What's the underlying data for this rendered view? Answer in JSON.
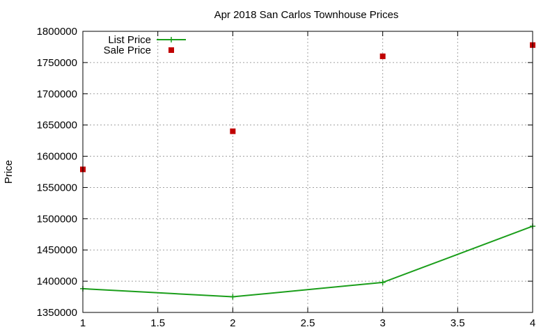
{
  "chart_data": {
    "type": "line",
    "title": "Apr 2018 San Carlos Townhouse Prices",
    "xlabel": "",
    "ylabel": "Price",
    "xlim": [
      1,
      4
    ],
    "ylim": [
      1350000,
      1800000
    ],
    "x_ticks": [
      1,
      1.5,
      2,
      2.5,
      3,
      3.5,
      4
    ],
    "x_tick_labels": [
      "1",
      "1.5",
      "2",
      "2.5",
      "3",
      "3.5",
      "4"
    ],
    "y_ticks": [
      1350000,
      1400000,
      1450000,
      1500000,
      1550000,
      1600000,
      1650000,
      1700000,
      1750000,
      1800000
    ],
    "y_tick_labels": [
      "1350000",
      "1400000",
      "1450000",
      "1500000",
      "1550000",
      "1600000",
      "1650000",
      "1700000",
      "1750000",
      "1800000"
    ],
    "grid": true,
    "legend_position": "top-left",
    "series": [
      {
        "name": "List Price",
        "style": "line-with-plus",
        "color": "#1a9e1a",
        "x": [
          1,
          2,
          3,
          4
        ],
        "y": [
          1388000,
          1375000,
          1398000,
          1488000
        ]
      },
      {
        "name": "Sale Price",
        "style": "square-markers",
        "color": "#c00000",
        "x": [
          1,
          2,
          3,
          4
        ],
        "y": [
          1579000,
          1640000,
          1760000,
          1778000
        ]
      }
    ]
  }
}
